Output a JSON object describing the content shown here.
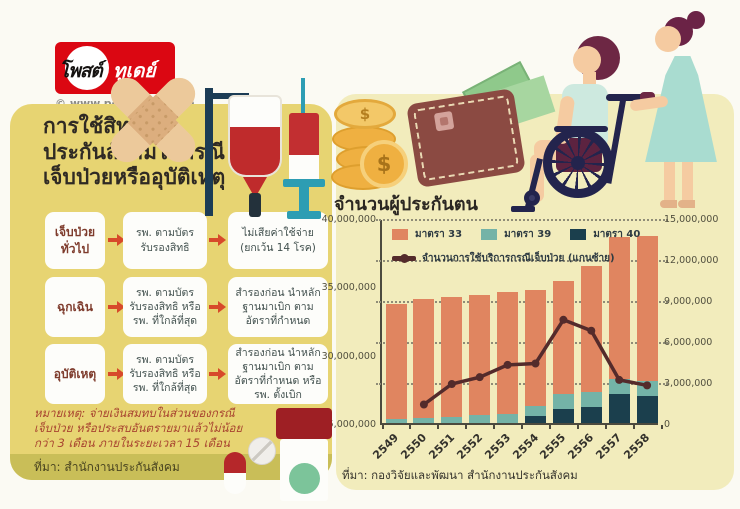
{
  "logo": {
    "brand_black": "โพสต์",
    "brand_white": "ทูเดย์",
    "copyright": "© www.posttoday.com"
  },
  "left_panel": {
    "title_lines": [
      "การใช้สิทธิ",
      "ประกันสังคมในกรณี",
      "เจ็บป่วยหรืออุบัติเหตุ"
    ],
    "rows": [
      {
        "label": "เจ็บป่วยทั่วไป",
        "step1": "รพ. ตามบัตร รับรองสิทธิ",
        "step2": "ไม่เสียค่าใช้จ่าย (ยกเว้น 14 โรค)"
      },
      {
        "label": "ฉุกเฉิน",
        "step1": "รพ. ตามบัตร รับรองสิทธิ หรือ รพ. ที่ใกล้ที่สุด",
        "step2": "สำรองก่อน นำหลักฐานมาเบิก ตามอัตราที่กำหนด"
      },
      {
        "label": "อุบัติเหตุ",
        "step1": "รพ. ตามบัตร รับรองสิทธิ หรือ รพ. ที่ใกล้ที่สุด",
        "step2": "สำรองก่อน นำหลักฐานมาเบิก ตามอัตราที่กำหนด หรือ รพ. ตั้งเบิก"
      }
    ],
    "note": "หมายเหตุ: จ่ายเงินสมทบในส่วนของกรณีเจ็บป่วย หรือประสบอันตรายมาแล้วไม่น้อยกว่า 3 เดือน ภายในระยะเวลา 15 เดือน",
    "source": "ที่มา: สำนักงานประกันสังคม"
  },
  "chart_panel": {
    "source": "ที่มา: กองวิจัยและพัฒนา สำนักงานประกันสังคม"
  },
  "chart_data": {
    "type": "bar",
    "title": "จำนวนผู้ประกันตน",
    "categories": [
      "2549",
      "2550",
      "2551",
      "2552",
      "2553",
      "2554",
      "2555",
      "2556",
      "2557",
      "2558"
    ],
    "series": [
      {
        "name": "มาตรา 33",
        "color": "#e08560",
        "values": [
          8400000,
          8750000,
          8800000,
          8750000,
          8950000,
          8500000,
          8300000,
          9200000,
          10400000,
          10600000
        ]
      },
      {
        "name": "มาตรา 39",
        "color": "#74b3a7",
        "values": [
          300000,
          350000,
          450000,
          600000,
          650000,
          750000,
          1100000,
          1100000,
          1100000,
          1100000
        ]
      },
      {
        "name": "มาตรา 40",
        "color": "#1b3f4d",
        "values": [
          0,
          0,
          0,
          0,
          0,
          500000,
          1000000,
          1200000,
          2100000,
          2000000
        ]
      }
    ],
    "stack_order_bottom_to_top": [
      "มาตรา 40",
      "มาตรา 39",
      "มาตรา 33"
    ],
    "line_series": {
      "name": "จำนวนการใช้บริการกรณีเจ็บป่วย (แกนซ้าย)",
      "axis": "left",
      "color": "#542b2b",
      "values": [
        null,
        26500000,
        28000000,
        28500000,
        29400000,
        29500000,
        32700000,
        31900000,
        28300000,
        27900000
      ]
    },
    "left_axis": {
      "min": 25000000,
      "max": 40000000,
      "ticks": [
        "40,000,000",
        "35,000,000",
        "30,000,000",
        "25,000,000"
      ],
      "tick_values": [
        40000000,
        35000000,
        30000000,
        25000000
      ]
    },
    "right_axis": {
      "min": 0,
      "max": 15000000,
      "ticks": [
        "15,000,000",
        "12,000,000",
        "9,000,000",
        "6,000,000",
        "3,000,000",
        "0"
      ],
      "tick_values": [
        15000000,
        12000000,
        9000000,
        6000000,
        3000000,
        0
      ]
    },
    "grid": "dotted horizontal",
    "legend_position": "top-left inside plot"
  },
  "colors": {
    "left_panel_bg": "#e7d472",
    "right_panel_bg": "#f2ecbc",
    "olive_band": "#c9be58",
    "brand_red": "#db0712",
    "arrow_red": "#d7492a",
    "case_label_text": "#7e3b2c",
    "note_text": "#a84430",
    "bar_m33": "#e08560",
    "bar_m39": "#74b3a7",
    "bar_m40": "#1b3f4d",
    "line_series": "#542b2b"
  }
}
